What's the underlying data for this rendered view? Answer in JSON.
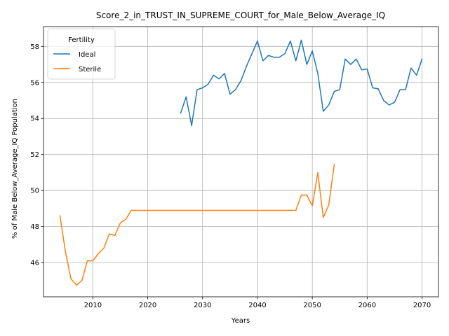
{
  "chart_data": {
    "type": "line",
    "title": "Score_2_in_TRUST_IN_SUPREME_COURT_for_Male_Below_Average_IQ",
    "xlabel": "Years",
    "ylabel": "% of Male Below_Average_IQ Population",
    "xlim": [
      2001,
      2073
    ],
    "ylim": [
      44.1,
      59.1
    ],
    "xticks": [
      2010,
      2020,
      2030,
      2040,
      2050,
      2060,
      2070
    ],
    "yticks": [
      46,
      48,
      50,
      52,
      54,
      56,
      58
    ],
    "grid": true,
    "legend": {
      "title": "Fertility",
      "position": "upper-left"
    },
    "series": [
      {
        "name": "Ideal",
        "color": "#1f77b4",
        "x": [
          2026,
          2027,
          2028,
          2029,
          2030,
          2031,
          2032,
          2033,
          2034,
          2035,
          2036,
          2037,
          2038,
          2039,
          2040,
          2041,
          2042,
          2043,
          2044,
          2045,
          2046,
          2047,
          2048,
          2049,
          2050,
          2051,
          2052,
          2053,
          2054,
          2055,
          2056,
          2057,
          2058,
          2059,
          2060,
          2061,
          2062,
          2063,
          2064,
          2065,
          2066,
          2067,
          2068,
          2069,
          2070
        ],
        "y": [
          54.3,
          55.2,
          53.6,
          55.6,
          55.7,
          55.9,
          56.4,
          56.2,
          56.5,
          55.35,
          55.6,
          56.1,
          56.9,
          57.6,
          58.3,
          57.2,
          57.5,
          57.4,
          57.4,
          57.6,
          58.3,
          57.2,
          58.35,
          57.0,
          57.75,
          56.5,
          54.4,
          54.75,
          55.5,
          55.6,
          57.3,
          57.0,
          57.3,
          56.7,
          56.75,
          55.7,
          55.65,
          55.0,
          54.75,
          54.9,
          55.6,
          55.6,
          56.8,
          56.4,
          57.3
        ]
      },
      {
        "name": "Sterile",
        "color": "#ff7f0e",
        "x": [
          2004,
          2005,
          2006,
          2007,
          2008,
          2009,
          2010,
          2011,
          2012,
          2013,
          2014,
          2015,
          2016,
          2017,
          2018,
          2019,
          2020,
          2021,
          2022,
          2023,
          2024,
          2025,
          2026,
          2027,
          2028,
          2029,
          2030,
          2031,
          2032,
          2033,
          2034,
          2035,
          2036,
          2037,
          2038,
          2039,
          2040,
          2041,
          2042,
          2043,
          2044,
          2045,
          2046,
          2047,
          2048,
          2049,
          2050,
          2051,
          2052,
          2053,
          2054
        ],
        "y": [
          48.6,
          46.6,
          45.1,
          44.75,
          45.0,
          46.1,
          46.1,
          46.5,
          46.8,
          47.6,
          47.5,
          48.2,
          48.4,
          48.9,
          48.9,
          48.9,
          48.9,
          48.9,
          48.9,
          48.9,
          48.9,
          48.9,
          48.9,
          48.9,
          48.9,
          48.9,
          48.9,
          48.9,
          48.9,
          48.9,
          48.9,
          48.9,
          48.9,
          48.9,
          48.9,
          48.9,
          48.9,
          48.9,
          48.9,
          48.9,
          48.9,
          48.9,
          48.9,
          48.9,
          49.75,
          49.75,
          49.15,
          51.0,
          48.5,
          49.2,
          51.45
        ]
      }
    ]
  }
}
